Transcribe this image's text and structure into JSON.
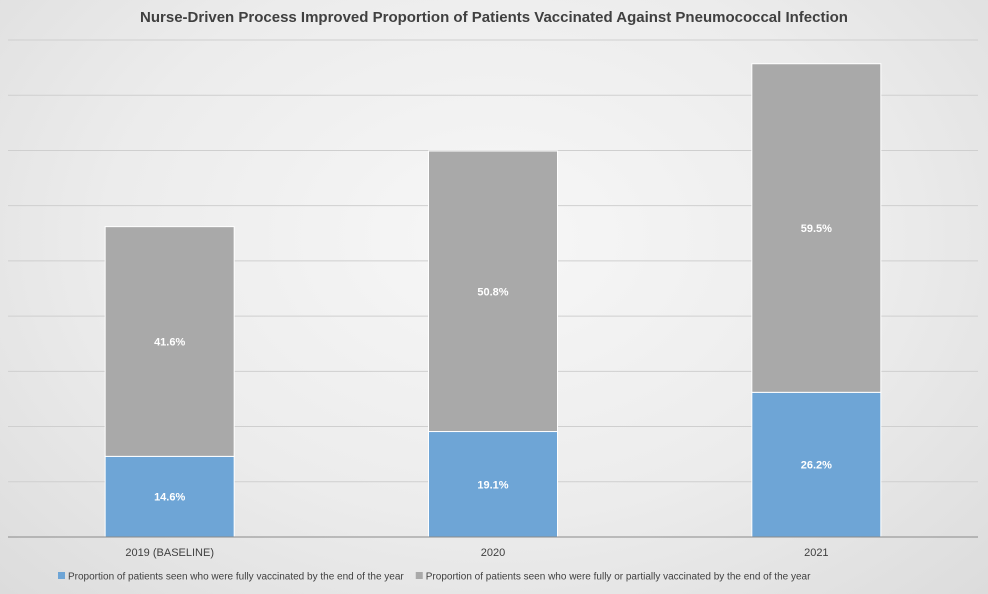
{
  "chart_data": {
    "type": "bar",
    "stacked": true,
    "title": "Nurse-Driven Process Improved Proportion of Patients Vaccinated Against Pneumococcal Infection",
    "categories": [
      "2019 (BASELINE)",
      "2020",
      "2021"
    ],
    "series": [
      {
        "name": "Proportion of patients seen who were fully vaccinated by the end of the year",
        "values": [
          14.6,
          19.1,
          26.2
        ],
        "labels": [
          "14.6%",
          "19.1%",
          "26.2%"
        ],
        "color": "#6ea5d6"
      },
      {
        "name": "Proportion of patients seen who were fully or partially vaccinated by the end of the year",
        "values": [
          41.6,
          50.8,
          59.5
        ],
        "labels": [
          "41.6%",
          "50.8%",
          "59.5%"
        ],
        "color": "#a9a9a9"
      }
    ],
    "ylim": [
      0,
      90
    ],
    "grid": true,
    "legend": "bottom"
  }
}
